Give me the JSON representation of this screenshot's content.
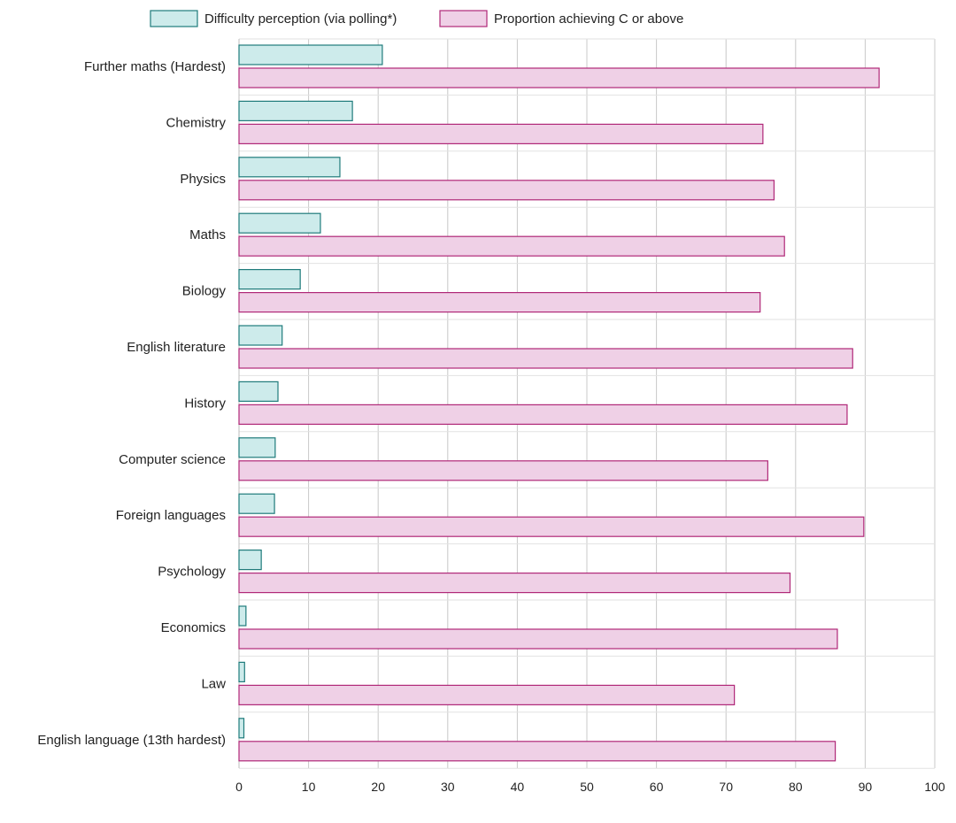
{
  "chart_data": {
    "type": "bar",
    "orientation": "horizontal",
    "title": "",
    "xlabel": "",
    "ylabel": "",
    "xlim": [
      0,
      100
    ],
    "xticks": [
      0,
      10,
      20,
      30,
      40,
      50,
      60,
      70,
      80,
      90,
      100
    ],
    "grid": true,
    "legend_position": "top",
    "categories": [
      "Further maths (Hardest)",
      "Chemistry",
      "Physics",
      "Maths",
      "Biology",
      "English literature",
      "History",
      "Computer science",
      "Foreign languages",
      "Psychology",
      "Economics",
      "Law",
      "English language (13th hardest)"
    ],
    "series": [
      {
        "name": "Difficulty perception (via polling*)",
        "fill": "#cdebeb",
        "stroke": "#1f7b7b",
        "values": [
          20.6,
          16.3,
          14.5,
          11.7,
          8.8,
          6.2,
          5.6,
          5.2,
          5.1,
          3.2,
          1.0,
          0.8,
          0.7
        ]
      },
      {
        "name": "Proportion achieving C or above",
        "fill": "#efd0e6",
        "stroke": "#b02878",
        "values": [
          92.0,
          75.3,
          76.9,
          78.4,
          74.9,
          88.2,
          87.4,
          76.0,
          89.8,
          79.2,
          86.0,
          71.2,
          85.7
        ]
      }
    ]
  }
}
